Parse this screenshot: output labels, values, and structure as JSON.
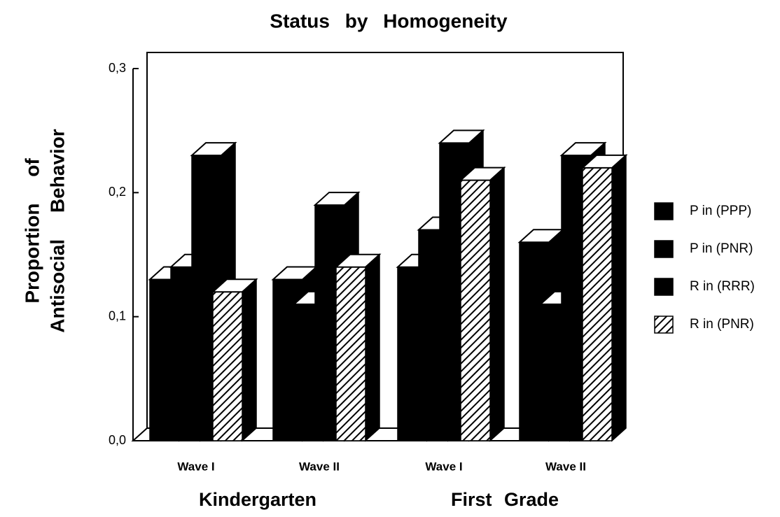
{
  "chart_data": {
    "type": "bar3d",
    "title": "Status by Homogeneity",
    "y_label": [
      "Proportion of",
      "Antisocial Behavior"
    ],
    "categories": [
      "Wave I",
      "Wave II",
      "Wave I",
      "Wave II"
    ],
    "groups": [
      "Kindergarten",
      "First Grade"
    ],
    "series": [
      {
        "name": "P in (PPP)",
        "color": "#000000",
        "pattern": "solid",
        "values": [
          0.13,
          0.13,
          0.14,
          0.16
        ]
      },
      {
        "name": "P in (PNR)",
        "color": "#000000",
        "pattern": "solid",
        "values": [
          0.14,
          0.11,
          0.17,
          0.11
        ]
      },
      {
        "name": "R in (RRR)",
        "color": "#000000",
        "pattern": "solid",
        "values": [
          0.23,
          0.19,
          0.24,
          0.23
        ]
      },
      {
        "name": "R in (PNR)",
        "color": "#000000",
        "pattern": "hatch",
        "values": [
          0.12,
          0.14,
          0.21,
          0.22
        ]
      }
    ],
    "ylim": [
      0,
      0.3
    ],
    "yticks": [
      {
        "value": 0,
        "label": "0,0"
      },
      {
        "value": 0.1,
        "label": "0,1"
      },
      {
        "value": 0.2,
        "label": "0,2"
      },
      {
        "value": 0.3,
        "label": "0,3"
      }
    ],
    "grid": false,
    "legend": "right"
  }
}
